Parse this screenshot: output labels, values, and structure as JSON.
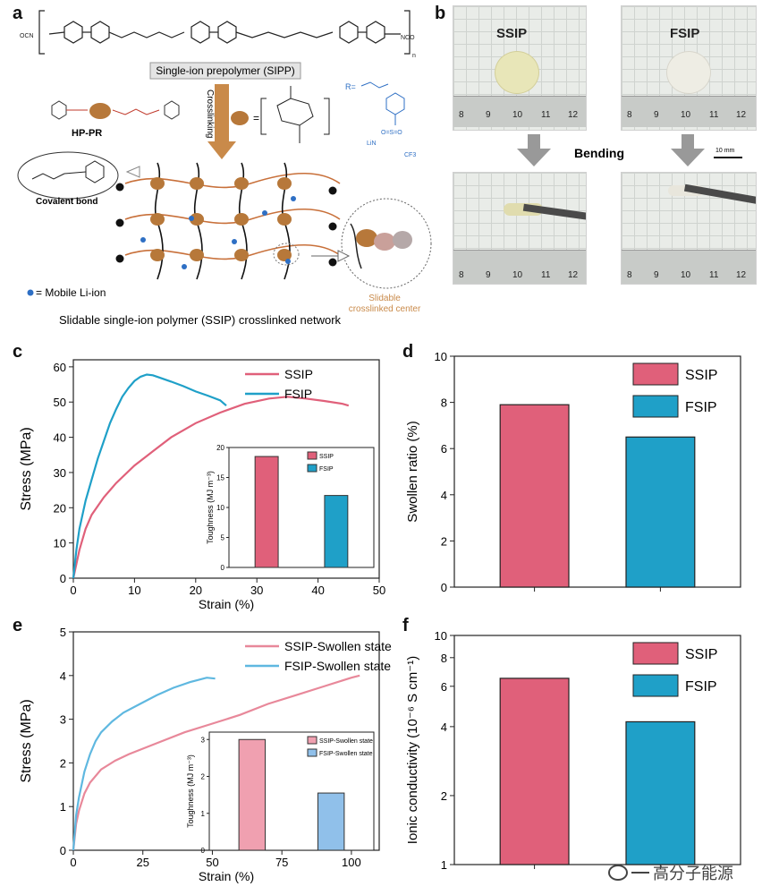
{
  "panel_letters": {
    "a": "a",
    "b": "b",
    "c": "c",
    "d": "d",
    "e": "e",
    "f": "f"
  },
  "panel_a": {
    "prepolymer_label": "Single-ion prepolymer (SIPP)",
    "hp_pr_label": "HP-PR",
    "crosslinking_label": "Crosslinking",
    "covalent_bond_label": "Covalent bond",
    "mobile_li_label": "= Mobile Li-ion",
    "slidable_center_label_1": "Slidable",
    "slidable_center_label_2": "crosslinked center",
    "network_caption": "Slidable single-ion polymer (SSIP) crosslinked network",
    "r_label": "R=",
    "chem_left": "OCN",
    "chem_right": "NCO",
    "chem_n": "n",
    "chem_so2": "O=S=O",
    "chem_li": "LiN",
    "chem_cf3": "CF3",
    "colors": {
      "bead": "#b7783a",
      "chain": "#c8703a",
      "ion": "#2e6fc4",
      "arrow": "#c98a4a"
    }
  },
  "panel_b": {
    "ssip_label": "SSIP",
    "fsip_label": "FSIP",
    "bending_label": "Bending",
    "scale_label": "10 mm",
    "ruler_ticks": [
      "8",
      "9",
      "10",
      "11",
      "12"
    ]
  },
  "panel_c": {
    "chart_data": {
      "type": "line",
      "xlabel": "Strain (%)",
      "ylabel": "Stress (MPa)",
      "xlim": [
        0,
        50
      ],
      "ylim": [
        0,
        62
      ],
      "xticks": [
        0,
        10,
        20,
        30,
        40,
        50
      ],
      "yticks": [
        0,
        10,
        20,
        30,
        40,
        50,
        60
      ],
      "series": [
        {
          "name": "SSIP",
          "color": "#e0607a",
          "x": [
            0,
            1,
            2,
            3,
            5,
            7,
            10,
            13,
            16,
            20,
            24,
            28,
            32,
            35,
            38,
            41,
            44,
            45
          ],
          "y": [
            0,
            8,
            14,
            18,
            23,
            27,
            32,
            36,
            40,
            44,
            47,
            49.5,
            51,
            51.5,
            51,
            50.3,
            49.5,
            49
          ]
        },
        {
          "name": "FSIP",
          "color": "#1fa0c8",
          "x": [
            0,
            0.5,
            1,
            2,
            3,
            4,
            5,
            6,
            7,
            8,
            9,
            10,
            11,
            12,
            13,
            14,
            16,
            18,
            20,
            22,
            24,
            25
          ],
          "y": [
            0,
            8,
            14,
            22,
            28,
            34,
            39,
            44,
            48,
            51.5,
            54,
            56,
            57.2,
            57.8,
            57.6,
            57,
            55.8,
            54.5,
            53,
            51.8,
            50.5,
            49
          ]
        }
      ],
      "legend": "top-right"
    },
    "inset": {
      "type": "bar",
      "ylabel": "Toughness (MJ m⁻³)",
      "ylim": [
        0,
        20
      ],
      "yticks": [
        0,
        5,
        10,
        15,
        20
      ],
      "categories": [
        "SSIP",
        "FSIP"
      ],
      "values": [
        18.5,
        12.0
      ],
      "colors": [
        "#e0607a",
        "#1fa0c8"
      ]
    }
  },
  "panel_d": {
    "chart_data": {
      "type": "bar",
      "ylabel": "Swollen ratio (%)",
      "ylim": [
        0,
        10
      ],
      "yticks": [
        0,
        2,
        4,
        6,
        8,
        10
      ],
      "categories": [
        "SSIP",
        "FSIP"
      ],
      "values": [
        7.9,
        6.5
      ],
      "colors": [
        "#e0607a",
        "#1fa0c8"
      ],
      "legend": "top-right"
    }
  },
  "panel_e": {
    "chart_data": {
      "type": "line",
      "xlabel": "Strain (%)",
      "ylabel": "Stress (MPa)",
      "xlim": [
        0,
        110
      ],
      "ylim": [
        0,
        5
      ],
      "xticks": [
        0,
        25,
        50,
        75,
        100
      ],
      "yticks": [
        0,
        1,
        2,
        3,
        4,
        5
      ],
      "series": [
        {
          "name": "SSIP-Swollen state",
          "color": "#e8889a",
          "x": [
            0,
            1,
            2,
            4,
            6,
            10,
            15,
            20,
            30,
            40,
            50,
            60,
            70,
            80,
            90,
            100,
            103
          ],
          "y": [
            0,
            0.6,
            0.9,
            1.3,
            1.55,
            1.85,
            2.05,
            2.2,
            2.45,
            2.7,
            2.9,
            3.1,
            3.35,
            3.55,
            3.75,
            3.95,
            4.0
          ]
        },
        {
          "name": "FSIP-Swollen state",
          "color": "#5fb8e0",
          "x": [
            0,
            1,
            2,
            4,
            6,
            8,
            10,
            14,
            18,
            24,
            30,
            36,
            42,
            48,
            51
          ],
          "y": [
            0,
            0.8,
            1.2,
            1.8,
            2.2,
            2.5,
            2.7,
            2.95,
            3.15,
            3.35,
            3.55,
            3.72,
            3.85,
            3.95,
            3.93
          ]
        }
      ],
      "legend": "top-right"
    },
    "inset": {
      "type": "bar",
      "ylabel": "Toughness (MJ m⁻³)",
      "ylim": [
        0,
        3.2
      ],
      "yticks": [
        0,
        1,
        2,
        3
      ],
      "categories": [
        "SSIP-Swollen state",
        "FSIP-Swollen state"
      ],
      "values": [
        3.0,
        1.55
      ],
      "colors": [
        "#f0a0b0",
        "#90c0ea"
      ]
    }
  },
  "panel_f": {
    "chart_data": {
      "type": "bar",
      "ylabel": "Ionic conductivity (10⁻⁶ S cm⁻¹)",
      "scale": "log",
      "ylim": [
        1,
        10
      ],
      "yticks": [
        1,
        2,
        4,
        6,
        8,
        10
      ],
      "categories": [
        "SSIP",
        "FSIP"
      ],
      "values": [
        6.5,
        4.2
      ],
      "colors": [
        "#e0607a",
        "#1fa0c8"
      ],
      "legend": "top-right"
    }
  },
  "watermark": "高分子能源"
}
